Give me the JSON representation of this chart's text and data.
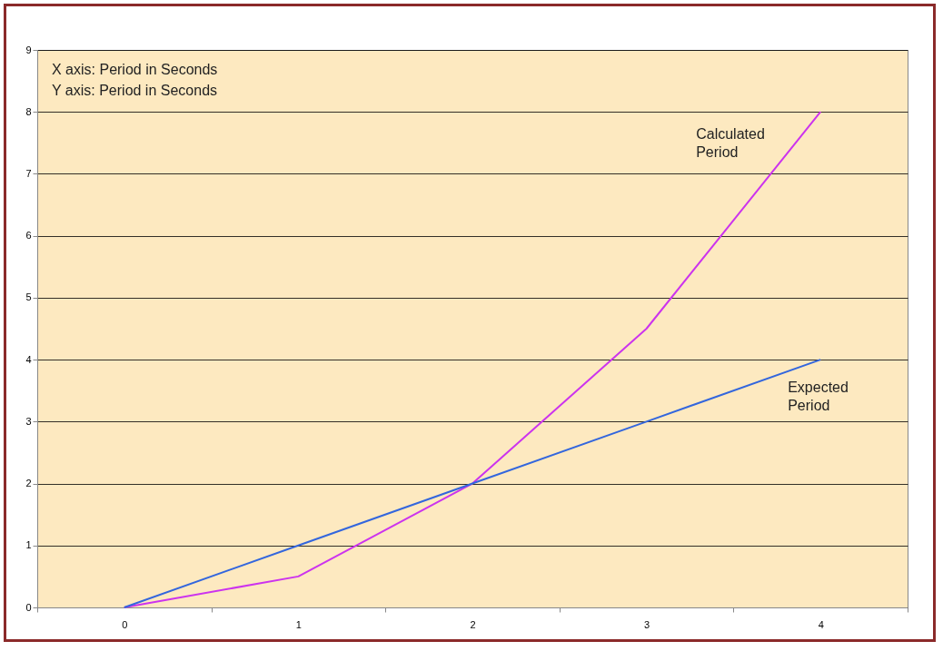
{
  "chart_data": {
    "type": "line",
    "categories": [
      "0",
      "1",
      "2",
      "3",
      "4"
    ],
    "series": [
      {
        "name": "Calculated Period",
        "color": "#cc33ee",
        "values": [
          0,
          0.5,
          2,
          4.5,
          8
        ]
      },
      {
        "name": "Expected Period",
        "color": "#3366dd",
        "values": [
          0,
          1,
          2,
          3,
          4
        ]
      }
    ],
    "ylim": [
      0,
      9
    ],
    "yticks": [
      0,
      1,
      2,
      3,
      4,
      5,
      6,
      7,
      8,
      9
    ],
    "grid": "y",
    "marker": "none",
    "annotations": [
      "X axis: Period in Seconds",
      "Y axis: Period in Seconds"
    ]
  }
}
